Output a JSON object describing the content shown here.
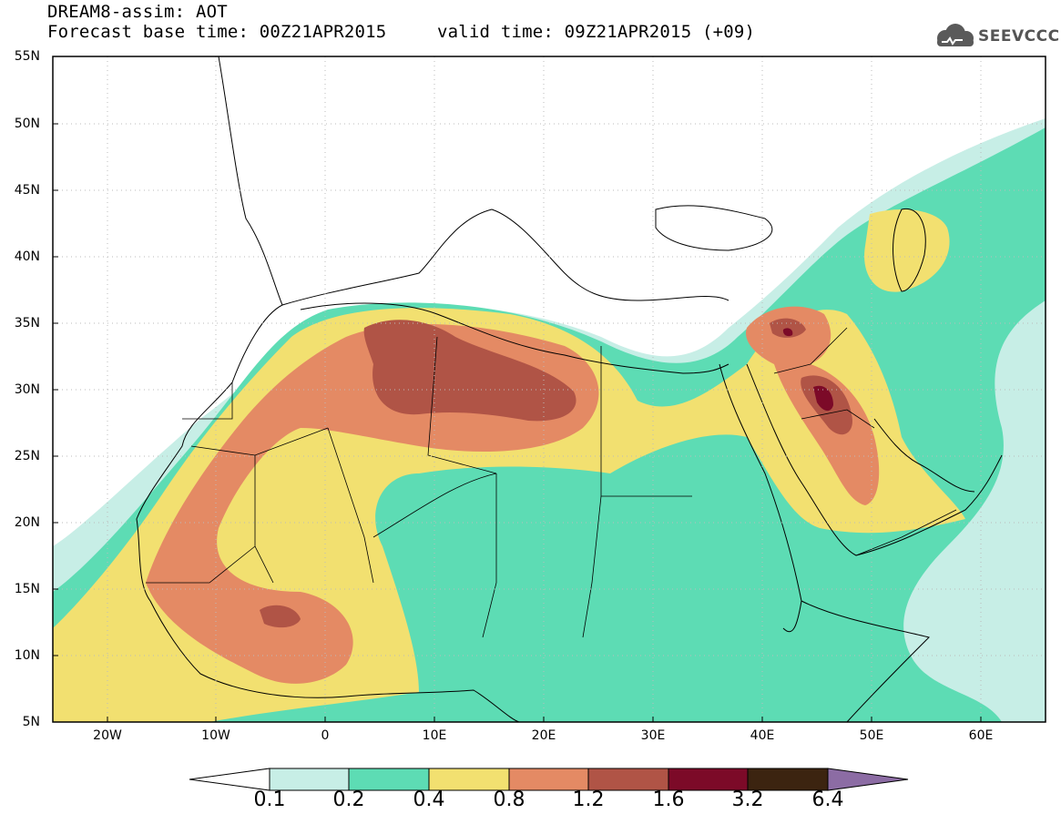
{
  "title": {
    "line1": "DREAM8-assim: AOT",
    "line2": "Forecast base time: 00Z21APR2015",
    "valid": "valid time: 09Z21APR2015 (+09)"
  },
  "logo": {
    "text": "SEEVCCC",
    "icon": "cloud-icon"
  },
  "map": {
    "lon_range": [
      -25,
      65
    ],
    "lat_range": [
      5,
      55
    ],
    "yticks": [
      "5N",
      "10N",
      "15N",
      "20N",
      "25N",
      "30N",
      "35N",
      "40N",
      "45N",
      "50N",
      "55N"
    ],
    "xticks": [
      "20W",
      "10W",
      "0",
      "10E",
      "20E",
      "30E",
      "40E",
      "50E",
      "60E"
    ],
    "field": "AOT",
    "colors": {
      "lvl1": "#c7eee6",
      "lvl2": "#5ddcb4",
      "lvl3": "#f2e070",
      "lvl4": "#e48a64",
      "lvl5": "#b05446",
      "lvl6": "#7c0a28",
      "lvl7": "#3c2410",
      "lvl8": "#8c6ca4"
    }
  },
  "colorbar": {
    "labels": [
      "0.1",
      "0.2",
      "0.4",
      "0.8",
      "1.2",
      "1.6",
      "3.2",
      "6.4"
    ]
  }
}
